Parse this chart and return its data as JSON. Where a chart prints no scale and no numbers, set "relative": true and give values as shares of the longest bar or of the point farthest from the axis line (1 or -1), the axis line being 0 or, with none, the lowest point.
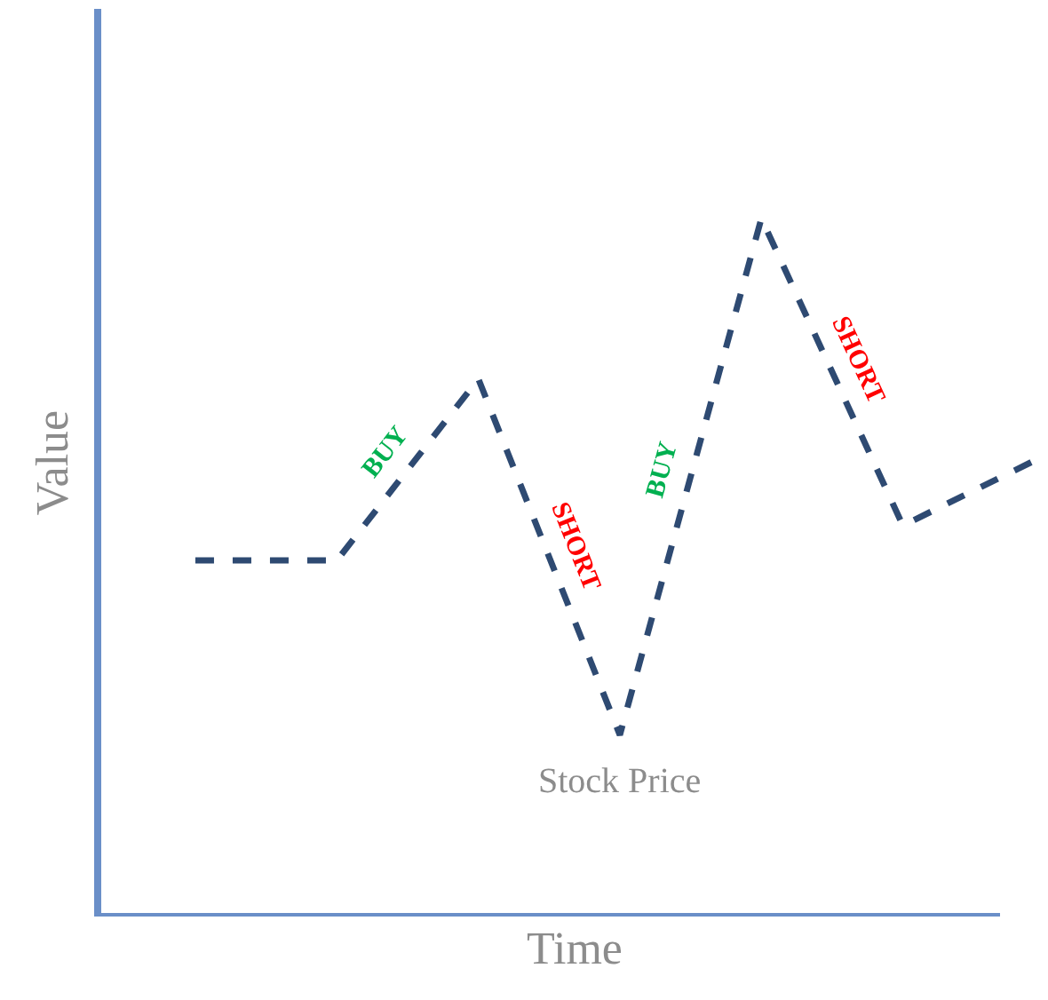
{
  "chart_data": {
    "type": "line",
    "relative": true,
    "xlabel": "Time",
    "ylabel": "Value",
    "categories": [
      null,
      null,
      null,
      null,
      null,
      null,
      null
    ],
    "series": [
      {
        "name": "Stock Price",
        "color": "#2e4a72",
        "values": [
          0.51,
          0.51,
          0.77,
          0.26,
          1,
          0.56,
          0.66
        ]
      }
    ],
    "annotations": [
      "BUY",
      "SHORT",
      "BUY",
      "SHORT"
    ],
    "line_style": "dashed",
    "marker": "none",
    "legend": false
  }
}
